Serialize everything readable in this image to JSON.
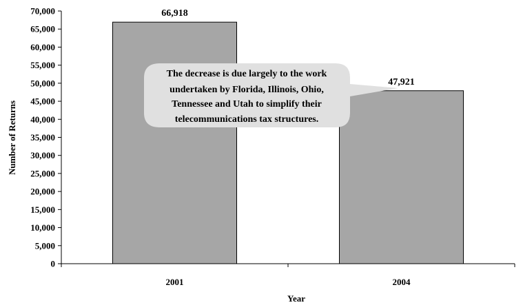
{
  "chart_data": {
    "type": "bar",
    "categories": [
      "2001",
      "2004"
    ],
    "values": [
      66918,
      47921
    ],
    "data_labels": [
      "66,918",
      "47,921"
    ],
    "xlabel": "Year",
    "ylabel": "Number of Returns",
    "ylim": [
      0,
      70000
    ],
    "yticks": [
      0,
      5000,
      10000,
      15000,
      20000,
      25000,
      30000,
      35000,
      40000,
      45000,
      50000,
      55000,
      60000,
      65000,
      70000
    ],
    "ytick_labels": [
      "0",
      "5,000",
      "10,000",
      "15,000",
      "20,000",
      "25,000",
      "30,000",
      "35,000",
      "40,000",
      "45,000",
      "50,000",
      "55,000",
      "60,000",
      "65,000",
      "70,000"
    ],
    "grid": false,
    "bar_color": "#a6a6a6",
    "callout": {
      "lines": [
        "The decrease is due largely to the work",
        "undertaken by Florida, Illinois, Ohio,",
        "Tennessee and Utah to simplify their",
        "telecommunications tax structures."
      ],
      "fill": "#e0e0e0"
    }
  }
}
